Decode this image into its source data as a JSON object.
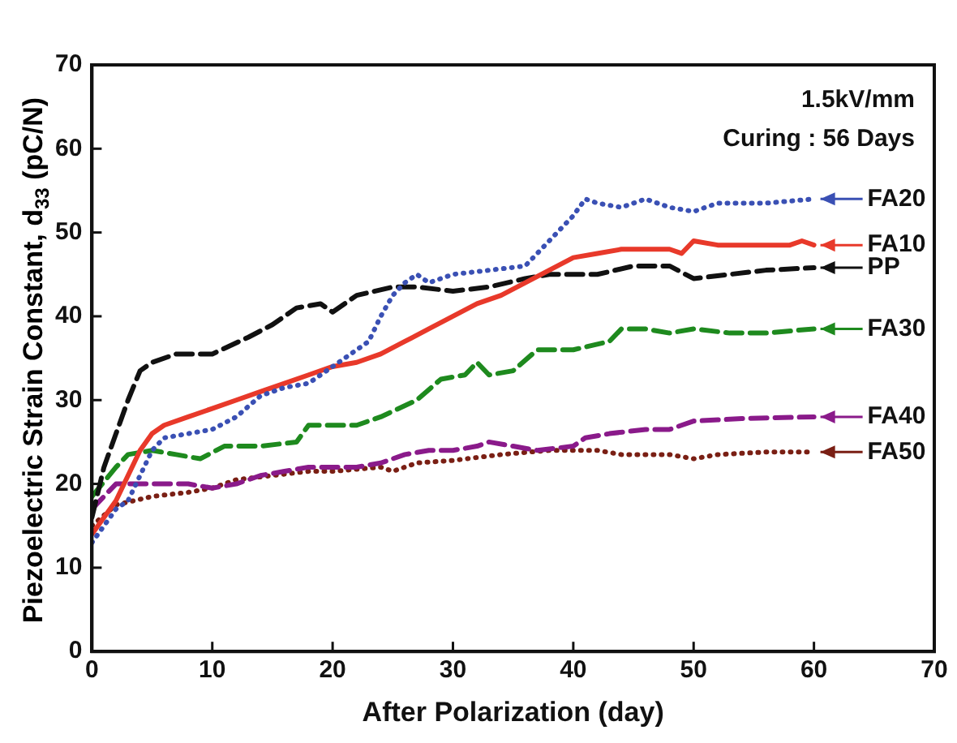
{
  "chart_data": {
    "type": "line",
    "xlabel": "After Polarization (day)",
    "ylabel": "Piezoelectric Strain Constant, d$_{33}$ (pC/N)",
    "xlim": [
      0,
      70
    ],
    "xticks": [
      0,
      10,
      20,
      30,
      40,
      50,
      60,
      70
    ],
    "ylim": [
      0,
      70
    ],
    "yticks": [
      0,
      10,
      20,
      30,
      40,
      50,
      60,
      70
    ],
    "grid": false,
    "legend": "right",
    "marker": "none",
    "series": [
      {
        "name": "FA20",
        "color": "#3a50b4",
        "line_style": "dotted",
        "x": [
          0,
          1,
          2,
          3,
          4,
          5,
          6,
          8,
          10,
          12,
          14,
          16,
          18,
          20,
          22,
          23,
          24,
          25,
          26,
          27,
          28,
          30,
          33,
          36,
          38,
          40,
          41,
          42,
          44,
          46,
          48,
          50,
          52,
          56,
          60
        ],
        "values": [
          13,
          15,
          17,
          18,
          21,
          24,
          25.5,
          26,
          26.5,
          28,
          30.5,
          31.5,
          32,
          34,
          36,
          37,
          40,
          42.5,
          44,
          45,
          44,
          45,
          45.5,
          46,
          49,
          52,
          54,
          53.5,
          53,
          54,
          53,
          52.5,
          53.5,
          53.5,
          54
        ]
      },
      {
        "name": "FA10",
        "color": "#e8392a",
        "line_style": "solid",
        "x": [
          0,
          2,
          4,
          5,
          6,
          8,
          10,
          12,
          14,
          16,
          18,
          20,
          22,
          24,
          26,
          28,
          30,
          32,
          34,
          36,
          38,
          40,
          42,
          44,
          46,
          48,
          49,
          50,
          52,
          56,
          58,
          59,
          60
        ],
        "values": [
          14,
          18,
          24,
          26,
          27,
          28,
          29,
          30,
          31,
          32,
          33,
          34,
          34.5,
          35.5,
          37,
          38.5,
          40,
          41.5,
          42.5,
          44,
          45.5,
          47,
          47.5,
          48,
          48,
          48,
          47.5,
          49,
          48.5,
          48.5,
          48.5,
          49,
          48.5
        ]
      },
      {
        "name": "PP",
        "color": "#111111",
        "line_style": "dashed",
        "x": [
          0,
          1,
          2,
          3,
          4,
          5,
          7,
          10,
          13,
          15,
          17,
          19,
          20,
          22,
          25,
          27,
          30,
          33,
          36,
          38,
          40,
          42,
          45,
          48,
          50,
          53,
          56,
          60
        ],
        "values": [
          16,
          22,
          26,
          30,
          33.5,
          34.5,
          35.5,
          35.5,
          37.5,
          39,
          41,
          41.5,
          40.5,
          42.5,
          43.5,
          43.5,
          43,
          43.5,
          44.5,
          45,
          45,
          45,
          46,
          46,
          44.5,
          45,
          45.5,
          45.8
        ]
      },
      {
        "name": "FA30",
        "color": "#1e8a1e",
        "line_style": "dashed",
        "x": [
          0,
          2,
          3,
          5,
          7,
          9,
          11,
          14,
          17,
          18,
          20,
          22,
          24,
          27,
          29,
          31,
          32,
          33,
          35,
          37,
          38,
          40,
          43,
          44,
          46,
          48,
          50,
          53,
          56,
          60
        ],
        "values": [
          18.5,
          22,
          23.5,
          24,
          23.5,
          23,
          24.5,
          24.5,
          25,
          27,
          27,
          27,
          28,
          30,
          32.5,
          33,
          34.5,
          33,
          33.5,
          36,
          36,
          36,
          37,
          38.5,
          38.5,
          38,
          38.5,
          38,
          38,
          38.5
        ]
      },
      {
        "name": "FA40",
        "color": "#8a1a8a",
        "line_style": "dashed",
        "x": [
          0,
          2,
          5,
          8,
          10,
          12,
          14,
          16,
          18,
          20,
          22,
          24,
          26,
          28,
          30,
          32,
          33,
          35,
          37,
          40,
          41,
          43,
          46,
          48,
          50,
          54,
          60
        ],
        "values": [
          17,
          20,
          20,
          20,
          19.5,
          20,
          21,
          21.5,
          22,
          22,
          22,
          22.5,
          23.5,
          24,
          24,
          24.5,
          25,
          24.5,
          24,
          24.5,
          25.5,
          26,
          26.5,
          26.5,
          27.5,
          27.8,
          28
        ]
      },
      {
        "name": "FA50",
        "color": "#7a1f14",
        "line_style": "dotted",
        "x": [
          0,
          2,
          5,
          8,
          10,
          12,
          15,
          18,
          20,
          24,
          25,
          27,
          30,
          34,
          38,
          40,
          42,
          44,
          46,
          48,
          50,
          52,
          56,
          60
        ],
        "values": [
          15,
          17.5,
          18.5,
          19,
          19.5,
          20.5,
          21,
          21.5,
          21.5,
          22,
          21.5,
          22.5,
          22.8,
          23.5,
          24,
          24,
          24,
          23.5,
          23.5,
          23.5,
          23,
          23.5,
          23.8,
          23.8
        ]
      }
    ],
    "annotations": [
      "1.5kV/mm",
      "Curing : 56 Days"
    ]
  }
}
